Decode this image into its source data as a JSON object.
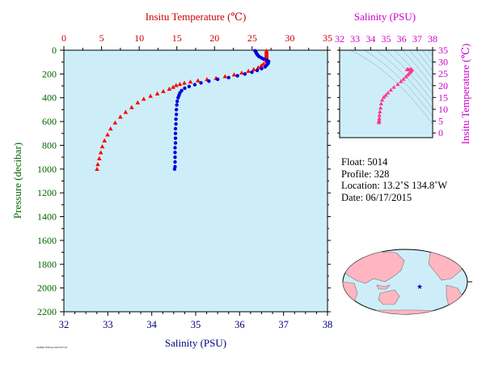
{
  "chart_data": [
    {
      "type": "scatter",
      "top_axis_label": "Insitu Temperature (℃)",
      "xlabel": "Salinity (PSU)",
      "ylabel": "Pressure (decibar)",
      "top_xlim": [
        0,
        35
      ],
      "xlim": [
        32,
        38
      ],
      "ylim": [
        2200,
        0
      ],
      "top_ticks": [
        "0",
        "5",
        "10",
        "15",
        "20",
        "25",
        "30",
        "35"
      ],
      "x_ticks": [
        "32",
        "33",
        "34",
        "35",
        "36",
        "37",
        "38"
      ],
      "y_ticks": [
        "0",
        "200",
        "400",
        "600",
        "800",
        "1000",
        "1200",
        "1400",
        "1600",
        "1800",
        "2000",
        "2200"
      ],
      "grid": false,
      "background_color": "#cdeef8",
      "series": [
        {
          "color": "#ff0000",
          "marker": "triangle",
          "axis": "top",
          "points": [
            [
              26.9,
              5
            ],
            [
              26.9,
              15
            ],
            [
              26.9,
              25
            ],
            [
              26.9,
              35
            ],
            [
              26.9,
              45
            ],
            [
              26.9,
              55
            ],
            [
              26.9,
              65
            ],
            [
              26.9,
              75
            ],
            [
              26.9,
              85
            ],
            [
              26.9,
              95
            ],
            [
              26.5,
              115
            ],
            [
              26.2,
              130
            ],
            [
              25.8,
              145
            ],
            [
              25.2,
              160
            ],
            [
              24.5,
              175
            ],
            [
              23.6,
              190
            ],
            [
              22.6,
              205
            ],
            [
              21.4,
              220
            ],
            [
              20.2,
              235
            ],
            [
              19.0,
              245
            ],
            [
              17.8,
              255
            ],
            [
              16.8,
              265
            ],
            [
              16.0,
              275
            ],
            [
              15.4,
              285
            ],
            [
              14.9,
              295
            ],
            [
              14.5,
              310
            ],
            [
              14.0,
              325
            ],
            [
              13.2,
              345
            ],
            [
              12.4,
              365
            ],
            [
              11.5,
              385
            ],
            [
              10.6,
              410
            ],
            [
              9.8,
              440
            ],
            [
              9.0,
              480
            ],
            [
              8.2,
              520
            ],
            [
              7.5,
              560
            ],
            [
              6.8,
              610
            ],
            [
              6.2,
              660
            ],
            [
              5.8,
              710
            ],
            [
              5.4,
              760
            ],
            [
              5.1,
              810
            ],
            [
              4.9,
              860
            ],
            [
              4.7,
              910
            ],
            [
              4.5,
              960
            ],
            [
              4.4,
              1000
            ]
          ]
        },
        {
          "color": "#0000dd",
          "marker": "circle",
          "axis": "bottom",
          "points": [
            [
              36.35,
              5
            ],
            [
              36.37,
              15
            ],
            [
              36.38,
              25
            ],
            [
              36.4,
              35
            ],
            [
              36.42,
              45
            ],
            [
              36.45,
              55
            ],
            [
              36.5,
              65
            ],
            [
              36.55,
              75
            ],
            [
              36.62,
              85
            ],
            [
              36.66,
              95
            ],
            [
              36.65,
              110
            ],
            [
              36.62,
              125
            ],
            [
              36.58,
              140
            ],
            [
              36.5,
              155
            ],
            [
              36.4,
              170
            ],
            [
              36.28,
              185
            ],
            [
              36.12,
              200
            ],
            [
              35.95,
              215
            ],
            [
              35.75,
              230
            ],
            [
              35.5,
              245
            ],
            [
              35.3,
              260
            ],
            [
              35.12,
              275
            ],
            [
              34.98,
              290
            ],
            [
              34.85,
              305
            ],
            [
              34.75,
              320
            ],
            [
              34.68,
              340
            ],
            [
              34.64,
              360
            ],
            [
              34.62,
              380
            ],
            [
              34.6,
              400
            ],
            [
              34.58,
              430
            ],
            [
              34.57,
              460
            ],
            [
              34.56,
              500
            ],
            [
              34.56,
              540
            ],
            [
              34.55,
              580
            ],
            [
              34.55,
              620
            ],
            [
              34.54,
              660
            ],
            [
              34.54,
              700
            ],
            [
              34.54,
              740
            ],
            [
              34.54,
              780
            ],
            [
              34.53,
              820
            ],
            [
              34.53,
              860
            ],
            [
              34.53,
              900
            ],
            [
              34.53,
              940
            ],
            [
              34.53,
              980
            ],
            [
              34.52,
              1000
            ]
          ]
        }
      ]
    },
    {
      "type": "scatter",
      "title": "Salinity (PSU)",
      "ylabel": "Insitu Temperature (℃)",
      "xlim": [
        32,
        38
      ],
      "ylim": [
        -2,
        35
      ],
      "x_ticks": [
        "32",
        "33",
        "34",
        "35",
        "36",
        "37",
        "38"
      ],
      "y_ticks": [
        "0",
        "5",
        "10",
        "15",
        "20",
        "25",
        "30",
        "35"
      ],
      "background_color": "#cdeef8",
      "series": [
        {
          "color": "#ff3399",
          "marker": "triangle",
          "points": [
            [
              34.53,
              4.4
            ],
            [
              34.54,
              4.9
            ],
            [
              34.55,
              5.4
            ],
            [
              34.56,
              6.2
            ],
            [
              34.57,
              7.5
            ],
            [
              34.6,
              9.0
            ],
            [
              34.64,
              10.6
            ],
            [
              34.68,
              12.4
            ],
            [
              34.75,
              14.0
            ],
            [
              34.85,
              15.2
            ],
            [
              34.98,
              16.0
            ],
            [
              35.12,
              17.0
            ],
            [
              35.3,
              18.2
            ],
            [
              35.5,
              19.4
            ],
            [
              35.75,
              20.6
            ],
            [
              35.95,
              21.8
            ],
            [
              36.12,
              22.8
            ],
            [
              36.28,
              23.8
            ],
            [
              36.4,
              24.6
            ],
            [
              36.5,
              25.3
            ],
            [
              36.58,
              25.9
            ],
            [
              36.62,
              26.4
            ],
            [
              36.66,
              26.8
            ],
            [
              36.6,
              26.9
            ],
            [
              36.5,
              26.9
            ],
            [
              36.4,
              26.9
            ],
            [
              36.35,
              26.9
            ]
          ]
        }
      ]
    }
  ],
  "info": {
    "float_label": "Float:",
    "float_value": "5014",
    "profile_label": "Profile:",
    "profile_value": "328",
    "location_label": "Location:",
    "location_value": "13.2˚S  134.8˚W",
    "date_label": "Date:",
    "date_value": "06/17/2015"
  },
  "footer_text": "AOML/NOAA  2015/07/16"
}
